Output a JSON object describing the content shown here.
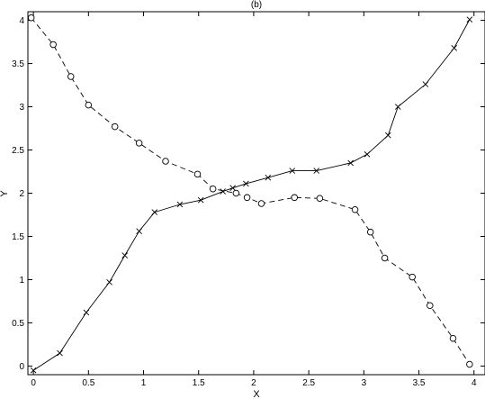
{
  "chart_data": {
    "type": "line",
    "title": "(b)",
    "xlabel": "X",
    "ylabel": "Y",
    "xlim": [
      -0.05,
      4.1
    ],
    "ylim": [
      -0.1,
      4.1
    ],
    "xticks": [
      0,
      0.5,
      1,
      1.5,
      2,
      2.5,
      3,
      3.5,
      4
    ],
    "yticks": [
      0,
      0.5,
      1,
      1.5,
      2,
      2.5,
      3,
      3.5,
      4
    ],
    "xtick_labels": [
      "0",
      "0.5",
      "1",
      "1.5",
      "2",
      "2.5",
      "3",
      "3.5",
      "4"
    ],
    "ytick_labels": [
      "0",
      "0.5",
      "1",
      "1.5",
      "2",
      "2.5",
      "3",
      "3.5",
      "4"
    ],
    "grid": false,
    "legend": "none",
    "series": [
      {
        "marker": "x",
        "line_style": "solid",
        "color": "#000000",
        "x": [
          0.0,
          0.24,
          0.48,
          0.69,
          0.83,
          0.96,
          1.1,
          1.33,
          1.52,
          1.72,
          1.81,
          1.93,
          2.13,
          2.35,
          2.57,
          2.88,
          3.03,
          3.22,
          3.31,
          3.56,
          3.82,
          3.96
        ],
        "y": [
          -0.05,
          0.15,
          0.62,
          0.97,
          1.28,
          1.56,
          1.78,
          1.87,
          1.92,
          2.02,
          2.06,
          2.11,
          2.18,
          2.26,
          2.26,
          2.35,
          2.45,
          2.67,
          3.0,
          3.26,
          3.68,
          4.01
        ]
      },
      {
        "marker": "o",
        "line_style": "dashed",
        "color": "#000000",
        "x": [
          -0.02,
          0.18,
          0.34,
          0.5,
          0.74,
          0.96,
          1.2,
          1.49,
          1.63,
          1.84,
          1.94,
          2.07,
          2.37,
          2.6,
          2.92,
          3.06,
          3.19,
          3.44,
          3.6,
          3.81,
          3.96
        ],
        "y": [
          4.03,
          3.72,
          3.35,
          3.02,
          2.77,
          2.58,
          2.37,
          2.22,
          2.05,
          2.0,
          1.95,
          1.88,
          1.95,
          1.94,
          1.81,
          1.55,
          1.25,
          1.03,
          0.7,
          0.32,
          0.02
        ]
      }
    ]
  }
}
